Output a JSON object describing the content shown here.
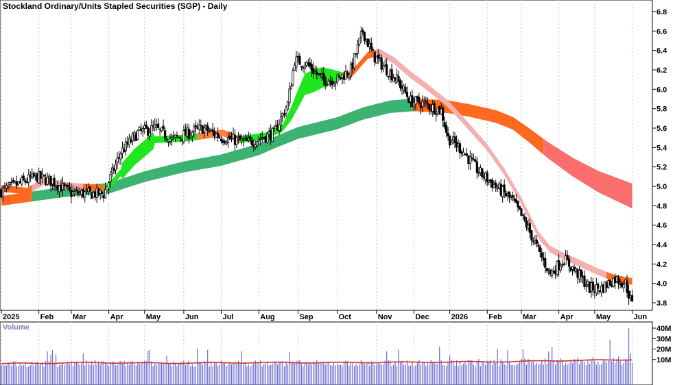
{
  "chart_data": [
    {
      "type": "candlestick",
      "title": "Stockland Ordinary/Units Stapled Securities (SGP) - Daily",
      "ylim": [
        3.65,
        6.9
      ],
      "y_ticks": [
        "6.8",
        "6.6",
        "6.4",
        "6.2",
        "6.0",
        "5.8",
        "5.6",
        "5.4",
        "5.2",
        "5.0",
        "4.8",
        "4.6",
        "4.4",
        "4.2",
        "4.0",
        "3.8"
      ],
      "x_ticks": [
        "2025",
        "Feb",
        "Mar",
        "Apr",
        "May",
        "Jun",
        "Jul",
        "Aug",
        "Sep",
        "Oct",
        "Nov",
        "Dec",
        "2026",
        "Feb",
        "Mar",
        "Apr",
        "May",
        "Jun"
      ],
      "x_tick_index": [
        0,
        22,
        41,
        63,
        84,
        107,
        129,
        151,
        174,
        197,
        220,
        242,
        263,
        285,
        305,
        327,
        348,
        370
      ],
      "series": [
        {
          "values": [
            [
              0,
              4.95
            ],
            [
              20,
              5.1
            ],
            [
              30,
              5.05
            ],
            [
              41,
              4.93
            ],
            [
              60,
              4.92
            ],
            [
              70,
              5.35
            ],
            [
              80,
              5.55
            ],
            [
              90,
              5.6
            ],
            [
              100,
              5.48
            ],
            [
              110,
              5.55
            ],
            [
              118,
              5.6
            ],
            [
              130,
              5.5
            ],
            [
              145,
              5.45
            ],
            [
              160,
              5.55
            ],
            [
              168,
              5.85
            ],
            [
              172,
              6.3
            ],
            [
              180,
              6.25
            ],
            [
              188,
              6.1
            ],
            [
              197,
              6.1
            ],
            [
              205,
              6.2
            ],
            [
              212,
              6.6
            ],
            [
              218,
              6.35
            ],
            [
              225,
              6.22
            ],
            [
              232,
              6.1
            ],
            [
              240,
              5.88
            ],
            [
              248,
              5.85
            ],
            [
              258,
              5.78
            ],
            [
              262,
              5.5
            ],
            [
              270,
              5.38
            ],
            [
              280,
              5.15
            ],
            [
              290,
              5.0
            ],
            [
              300,
              4.85
            ],
            [
              308,
              4.6
            ],
            [
              316,
              4.3
            ],
            [
              322,
              4.1
            ],
            [
              330,
              4.25
            ],
            [
              338,
              4.1
            ],
            [
              345,
              3.95
            ],
            [
              352,
              3.95
            ],
            [
              360,
              4.05
            ],
            [
              366,
              4.0
            ],
            [
              370,
              3.78
            ]
          ]
        },
        {
          "values": [
            [
              0,
              4.85
            ],
            [
              40,
              4.95
            ],
            [
              63,
              4.98
            ],
            [
              84,
              5.1
            ],
            [
              107,
              5.2
            ],
            [
              129,
              5.27
            ],
            [
              151,
              5.38
            ],
            [
              160,
              5.45
            ],
            [
              174,
              5.55
            ],
            [
              197,
              5.65
            ],
            [
              212,
              5.75
            ],
            [
              228,
              5.82
            ],
            [
              242,
              5.84
            ]
          ]
        },
        {
          "values": [
            [
              242,
              5.84
            ],
            [
              262,
              5.82
            ],
            [
              275,
              5.78
            ],
            [
              290,
              5.72
            ],
            [
              300,
              5.65
            ],
            [
              310,
              5.52
            ],
            [
              320,
              5.38
            ],
            [
              335,
              5.2
            ],
            [
              350,
              5.05
            ],
            [
              370,
              4.9
            ]
          ]
        },
        {
          "values": [
            [
              0,
              4.98
            ],
            [
              15,
              4.95
            ],
            [
              25,
              5.05
            ],
            [
              41,
              5.0
            ],
            [
              60,
              4.98
            ],
            [
              63,
              5.0
            ],
            [
              78,
              5.3
            ],
            [
              90,
              5.48
            ],
            [
              110,
              5.5
            ],
            [
              130,
              5.55
            ],
            [
              140,
              5.48
            ],
            [
              155,
              5.52
            ],
            [
              165,
              5.6
            ],
            [
              170,
              5.75
            ],
            [
              178,
              6.05
            ],
            [
              188,
              6.12
            ],
            [
              195,
              6.13
            ],
            [
              205,
              6.15
            ],
            [
              215,
              6.35
            ],
            [
              222,
              6.38
            ],
            [
              230,
              6.3
            ],
            [
              240,
              6.15
            ],
            [
              250,
              6.02
            ],
            [
              262,
              5.85
            ],
            [
              275,
              5.6
            ],
            [
              285,
              5.4
            ],
            [
              295,
              5.15
            ],
            [
              305,
              4.85
            ],
            [
              315,
              4.5
            ],
            [
              322,
              4.35
            ],
            [
              330,
              4.28
            ],
            [
              340,
              4.2
            ],
            [
              350,
              4.12
            ],
            [
              360,
              4.05
            ],
            [
              370,
              4.02
            ]
          ]
        }
      ]
    },
    {
      "type": "bar",
      "title": "Volume",
      "ylim": [
        0,
        42
      ],
      "y_ticks": [
        "40M",
        "30M",
        "20M",
        "10M"
      ],
      "series": [
        {
          "values": [
            [
              0,
              6
            ],
            [
              50,
              7
            ],
            [
              100,
              6.5
            ],
            [
              150,
              7
            ],
            [
              200,
              7
            ],
            [
              250,
              7.5
            ],
            [
              300,
              8
            ],
            [
              330,
              9
            ],
            [
              360,
              9.5
            ],
            [
              370,
              10
            ]
          ]
        }
      ]
    }
  ]
}
